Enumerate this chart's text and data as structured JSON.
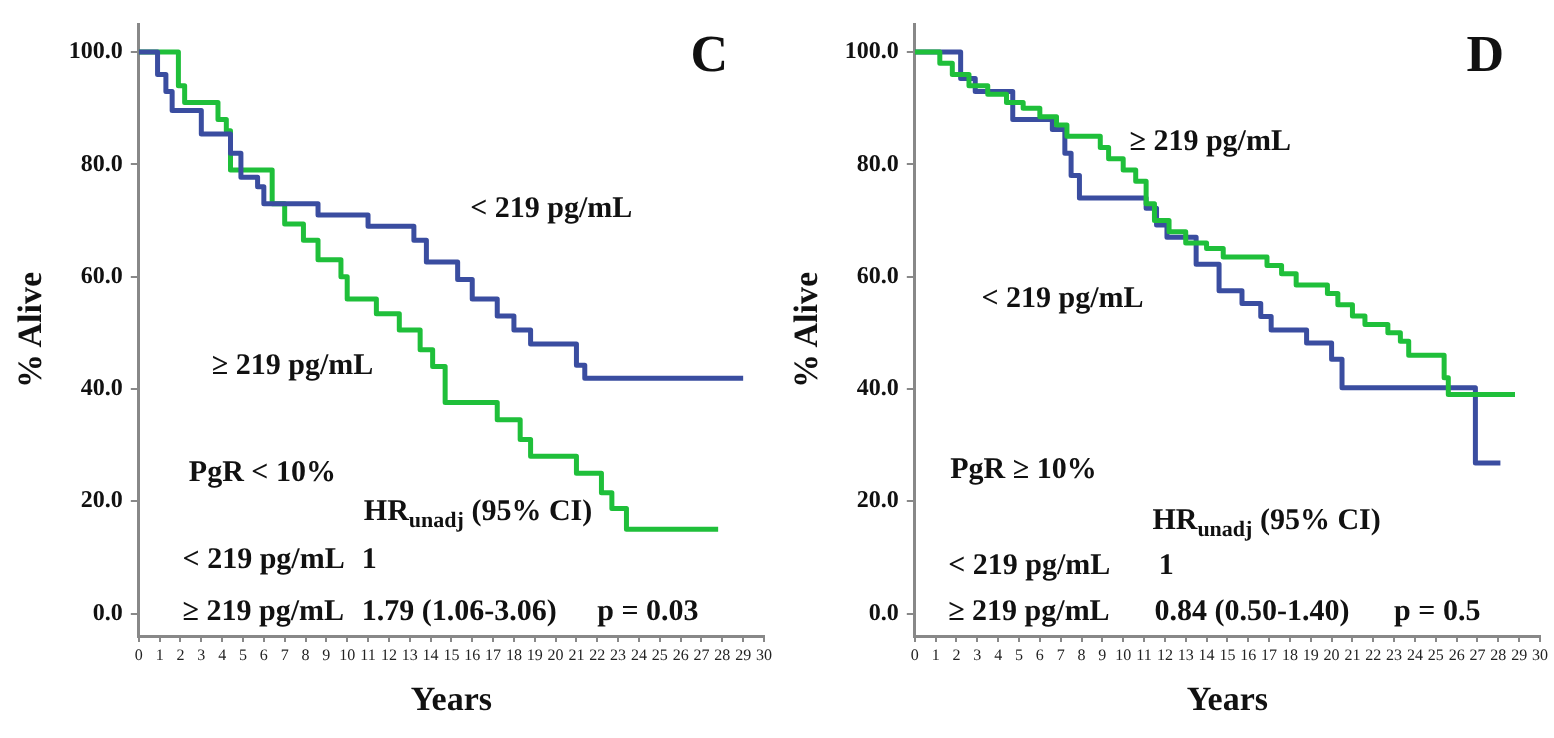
{
  "chart_data": [
    {
      "type": "step",
      "title": "C",
      "xlabel": "Years",
      "ylabel": "% Alive",
      "xlim": [
        0,
        30
      ],
      "xticks": [
        0,
        1,
        2,
        3,
        4,
        5,
        6,
        7,
        8,
        9,
        10,
        11,
        12,
        13,
        14,
        15,
        16,
        17,
        18,
        19,
        20,
        21,
        22,
        23,
        24,
        25,
        26,
        27,
        28,
        29,
        30
      ],
      "ylim": [
        -4,
        105
      ],
      "yticks": [
        {
          "value": 0,
          "label": "0.0"
        },
        {
          "value": 20,
          "label": "20.0"
        },
        {
          "value": 40,
          "label": "40.0"
        },
        {
          "value": 60,
          "label": "60.0"
        },
        {
          "value": 80,
          "label": "80.0"
        },
        {
          "value": 100,
          "label": "100.0"
        }
      ],
      "grid": false,
      "legend": false,
      "series": [
        {
          "name": "< 219 pg/mL",
          "color": "#3a4da0",
          "x": [
            0,
            0.9,
            1.3,
            1.6,
            3.0,
            4.4,
            4.9,
            5.7,
            6.0,
            8.6,
            11.0,
            13.2,
            13.8,
            15.3,
            16.0,
            17.2,
            18.0,
            18.8,
            21.0,
            21.4,
            29.0
          ],
          "values": [
            100,
            96,
            93,
            89.6,
            85.4,
            82,
            77.7,
            76,
            73,
            71,
            69,
            66.5,
            62.6,
            59.5,
            56,
            53,
            50.5,
            48,
            44.2,
            41.9,
            41.9
          ]
        },
        {
          "name": "≥ 219 pg/mL",
          "color": "#1fbf3a",
          "x": [
            0,
            1.9,
            2.2,
            3.8,
            4.2,
            4.4,
            6.4,
            7.0,
            7.9,
            8.6,
            9.7,
            10.0,
            11.4,
            12.5,
            13.5,
            14.1,
            14.7,
            17.2,
            18.3,
            18.8,
            21.0,
            22.2,
            22.7,
            23.4,
            27.8
          ],
          "values": [
            100,
            94,
            91,
            88,
            86,
            79,
            73,
            69.4,
            66.5,
            63,
            60,
            56,
            53.4,
            50.5,
            47,
            44,
            37.6,
            34.5,
            31,
            28,
            25,
            21.5,
            18.7,
            15,
            15
          ]
        }
      ],
      "annotations": [
        "PgR < 10%",
        "HR$_{unadj}$ (95% CI)",
        "< 219 pg/mL",
        "1",
        "≥ 219 pg/mL",
        "1.79 (1.06-3.06)",
        "p = 0.03"
      ]
    },
    {
      "type": "step",
      "title": "D",
      "xlabel": "Years",
      "ylabel": "% Alive",
      "xlim": [
        0,
        30
      ],
      "xticks": [
        0,
        1,
        2,
        3,
        4,
        5,
        6,
        7,
        8,
        9,
        10,
        11,
        12,
        13,
        14,
        15,
        16,
        17,
        18,
        19,
        20,
        21,
        22,
        23,
        24,
        25,
        26,
        27,
        28,
        29,
        30
      ],
      "ylim": [
        -4,
        105
      ],
      "yticks": [
        {
          "value": 0,
          "label": "0.0"
        },
        {
          "value": 20,
          "label": "20.0"
        },
        {
          "value": 40,
          "label": "40.0"
        },
        {
          "value": 60,
          "label": "60.0"
        },
        {
          "value": 80,
          "label": "80.0"
        },
        {
          "value": 100,
          "label": "100.0"
        }
      ],
      "grid": false,
      "legend": false,
      "series": [
        {
          "name": "≥ 219 pg/mL",
          "color": "#1fbf3a",
          "x": [
            0,
            1.2,
            1.8,
            2.6,
            3.5,
            4.4,
            5.2,
            6.0,
            6.8,
            7.3,
            8.9,
            9.3,
            10.0,
            10.6,
            11.1,
            11.5,
            12.2,
            13.0,
            14.0,
            14.8,
            16.9,
            17.6,
            18.3,
            19.8,
            20.3,
            21.0,
            21.6,
            22.7,
            23.3,
            23.7,
            25.4,
            25.6,
            28.8
          ],
          "values": [
            100,
            98,
            96,
            94,
            92.5,
            91,
            90,
            88.5,
            87,
            85,
            83,
            81,
            79,
            77,
            73,
            70,
            68,
            66,
            65,
            63.5,
            62,
            60.5,
            58.5,
            57,
            55,
            53,
            51.5,
            50,
            48.5,
            46,
            42,
            39,
            39
          ]
        },
        {
          "name": "< 219 pg/mL",
          "color": "#3a4da0",
          "x": [
            0,
            2.2,
            2.9,
            4.7,
            6.6,
            7.2,
            7.5,
            7.9,
            11.1,
            11.6,
            12.1,
            13.5,
            14.6,
            15.7,
            16.6,
            17.1,
            18.8,
            20.0,
            20.5,
            26.9,
            28.1
          ],
          "values": [
            100,
            95.3,
            93,
            88,
            86.2,
            82,
            78,
            74,
            72.2,
            69.2,
            67,
            62.2,
            57.5,
            55.2,
            52.9,
            50.5,
            48.2,
            45.3,
            40.2,
            26.8,
            26.8
          ]
        }
      ],
      "annotations": [
        "PgR ≥ 10%",
        "HR$_{unadj}$ (95% CI)",
        "< 219 pg/mL",
        "1",
        "≥ 219 pg/mL",
        "0.84 (0.50-1.40)",
        "p = 0.5"
      ]
    }
  ]
}
